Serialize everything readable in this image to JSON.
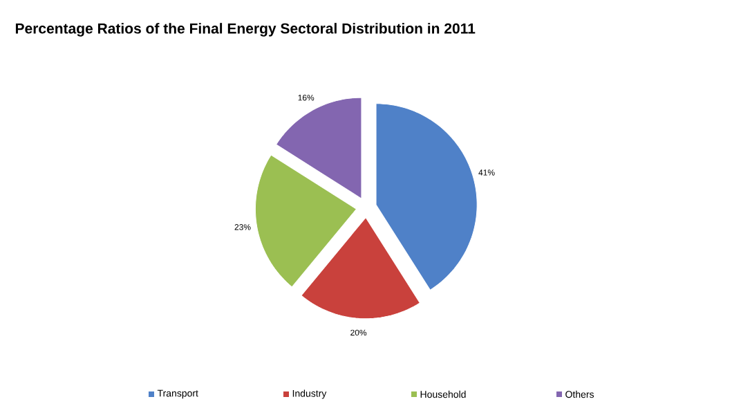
{
  "chart_data": {
    "type": "pie",
    "title": "Percentage Ratios of  the Final Energy Sectoral Distribution in 2011",
    "categories": [
      "Transport",
      "Industry",
      "Household",
      "Others"
    ],
    "values": [
      41,
      20,
      23,
      16
    ],
    "value_labels": [
      "41%",
      "20%",
      "23%",
      "16%"
    ],
    "colors": [
      "#4f81c8",
      "#c9413c",
      "#9bbf52",
      "#8366b0"
    ],
    "legend": "bottom"
  }
}
